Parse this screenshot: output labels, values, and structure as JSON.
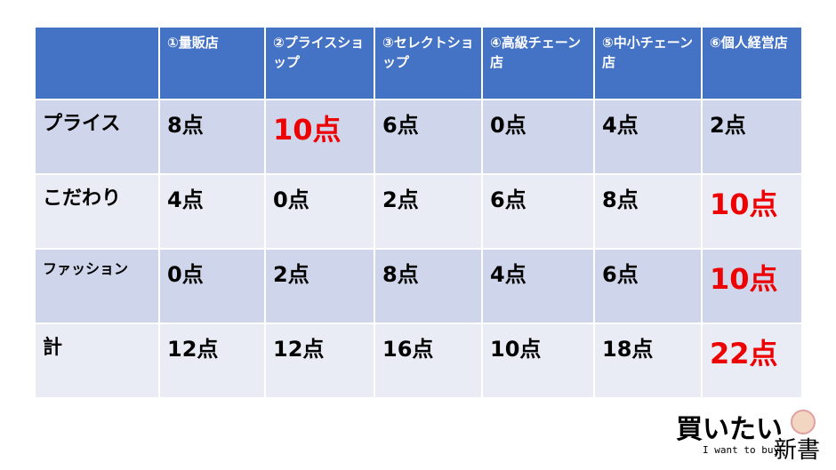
{
  "table": {
    "header": [
      "",
      "①量販店",
      "②プライスショップ",
      "③セレクトショップ",
      "④高級チェーン店",
      "⑤中小チェーン店",
      "⑥個人経営店"
    ],
    "rows": [
      {
        "label": "プライス",
        "cells": [
          "8点",
          "10点",
          "6点",
          "0点",
          "4点",
          "2点"
        ],
        "highlight": [
          false,
          true,
          false,
          false,
          false,
          false
        ]
      },
      {
        "label": "こだわり",
        "cells": [
          "4点",
          "0点",
          "2点",
          "6点",
          "8点",
          "10点"
        ],
        "highlight": [
          false,
          false,
          false,
          false,
          false,
          true
        ]
      },
      {
        "label": "ファッション",
        "cells": [
          "0点",
          "2点",
          "8点",
          "4点",
          "6点",
          "10点"
        ],
        "highlight": [
          false,
          false,
          false,
          false,
          false,
          true
        ]
      },
      {
        "label": "計",
        "cells": [
          "12点",
          "12点",
          "16点",
          "10点",
          "18点",
          "22点"
        ],
        "highlight": [
          false,
          false,
          false,
          false,
          false,
          true
        ]
      }
    ],
    "header_color": "#4472c4",
    "row_colors": [
      "#cfd5ea",
      "#e9ebf5"
    ],
    "highlight_color": "#ee0000"
  },
  "logo": {
    "main": "買いたい",
    "sub": "新書",
    "tagline": "I want to buy"
  }
}
